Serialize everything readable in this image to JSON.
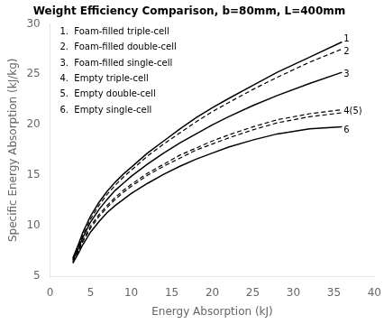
{
  "chart_data": {
    "type": "line",
    "title": "Weight Efficiency Comparison, b=80mm, L=400mm",
    "x_label": "Energy Absorption (kJ)",
    "y_label": "Specific Energy Absorption (kJ/kg)",
    "xlim": [
      0,
      40
    ],
    "ylim": [
      5,
      30
    ],
    "xticks": [
      0,
      5,
      10,
      15,
      20,
      25,
      30,
      35,
      40
    ],
    "yticks": [
      5,
      10,
      15,
      20,
      25,
      30
    ],
    "grid": false,
    "x": [
      2.8,
      3.5,
      4.0,
      5.0,
      6.0,
      7.0,
      8.0,
      9.0,
      10.0,
      12.0,
      14.0,
      16.0,
      18.0,
      20.0,
      22.0,
      25.0,
      28.0,
      32.0,
      36.0
    ],
    "series": [
      {
        "color": "#000000",
        "line_style": "solid",
        "values": [
          6.8,
          8.2,
          9.3,
          11.0,
          12.3,
          13.4,
          14.3,
          15.1,
          15.8,
          17.2,
          18.4,
          19.6,
          20.7,
          21.7,
          22.6,
          23.9,
          25.2,
          26.7,
          28.2
        ]
      },
      {
        "color": "#000000",
        "line_style": "dashed",
        "values": [
          6.7,
          8.0,
          9.0,
          10.7,
          12.0,
          13.1,
          14.0,
          14.8,
          15.5,
          16.9,
          18.1,
          19.2,
          20.3,
          21.3,
          22.2,
          23.5,
          24.7,
          26.2,
          27.5
        ]
      },
      {
        "color": "#000000",
        "line_style": "solid",
        "values": [
          6.6,
          7.8,
          8.8,
          10.4,
          11.6,
          12.6,
          13.5,
          14.2,
          14.9,
          16.1,
          17.2,
          18.2,
          19.1,
          20.0,
          20.8,
          21.9,
          22.9,
          24.1,
          25.2
        ]
      },
      {
        "color": "#000000",
        "line_style": "dashed",
        "values": [
          6.5,
          7.6,
          8.5,
          10.0,
          11.1,
          12.0,
          12.8,
          13.5,
          14.1,
          15.2,
          16.1,
          17.0,
          17.7,
          18.4,
          19.0,
          19.8,
          20.5,
          21.1,
          21.5
        ]
      },
      {
        "color": "#000000",
        "line_style": "dashed",
        "values": [
          6.4,
          7.5,
          8.4,
          9.8,
          10.9,
          11.8,
          12.6,
          13.3,
          13.9,
          15.0,
          15.9,
          16.7,
          17.5,
          18.1,
          18.7,
          19.5,
          20.2,
          20.8,
          21.2
        ]
      },
      {
        "color": "#000000",
        "line_style": "solid",
        "values": [
          6.3,
          7.3,
          8.1,
          9.4,
          10.4,
          11.3,
          12.0,
          12.6,
          13.2,
          14.2,
          15.1,
          15.9,
          16.6,
          17.2,
          17.8,
          18.5,
          19.1,
          19.6,
          19.8
        ]
      }
    ],
    "annotations": [
      {
        "text": "1",
        "x": 36.2,
        "y": 28.5
      },
      {
        "text": "2",
        "x": 36.2,
        "y": 27.2
      },
      {
        "text": "3",
        "x": 36.2,
        "y": 25.0
      },
      {
        "text": "4(5)",
        "x": 36.2,
        "y": 21.3
      },
      {
        "text": "6",
        "x": 36.2,
        "y": 19.5
      },
      {
        "text": "1.  Foam-filled triple-cell",
        "x": 1.2,
        "y": 29.2
      },
      {
        "text": "2.  Foam-filled double-cell",
        "x": 1.2,
        "y": 27.65
      },
      {
        "text": "3.  Foam-filled single-cell",
        "x": 1.2,
        "y": 26.1
      },
      {
        "text": "4.  Empty triple-cell",
        "x": 1.2,
        "y": 24.55
      },
      {
        "text": "5.  Empty double-cell",
        "x": 1.2,
        "y": 23.0
      },
      {
        "text": "6.  Empty single-cell",
        "x": 1.2,
        "y": 21.45
      }
    ]
  }
}
